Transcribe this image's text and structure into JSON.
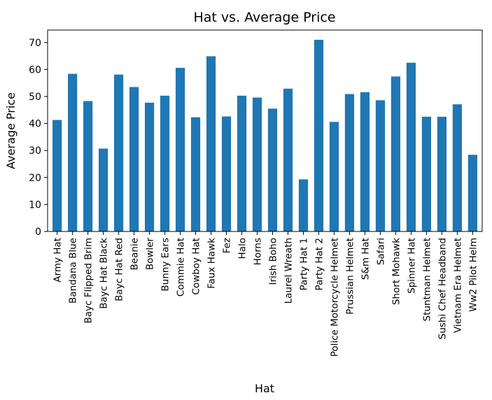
{
  "chart_data": {
    "type": "bar",
    "title": "Hat vs. Average Price",
    "xlabel": "Hat",
    "ylabel": "Average Price",
    "ylim": [
      0,
      74.6
    ],
    "yticks": [
      0,
      10,
      20,
      30,
      40,
      50,
      60,
      70
    ],
    "grid": false,
    "bar_color": "#1f77b4",
    "categories": [
      "Army Hat",
      "Bandana Blue",
      "Bayc Flipped Brim",
      "Bayc Hat Black",
      "Bayc Hat Red",
      "Beanie",
      "Bowler",
      "Bunny Ears",
      "Commie Hat",
      "Cowboy Hat",
      "Faux Hawk",
      "Fez",
      "Halo",
      "Horns",
      "Irish Boho",
      "Laurel Wreath",
      "Party Hat 1",
      "Party Hat 2",
      "Police Motorcycle Helmet",
      "Prussian Helmet",
      "S&m Hat",
      "Safari",
      "Short Mohawk",
      "Spinner Hat",
      "Stuntman Helmet",
      "Sushi Chef Headband",
      "Vietnam Era Helmet",
      "Ww2 Pilot Helm"
    ],
    "values": [
      41.3,
      58.4,
      48.3,
      30.7,
      58.1,
      53.5,
      47.7,
      50.3,
      60.6,
      42.3,
      64.9,
      42.6,
      50.3,
      49.6,
      45.5,
      52.9,
      19.3,
      71.0,
      40.6,
      50.9,
      51.6,
      48.6,
      57.4,
      62.5,
      42.5,
      42.5,
      47.1,
      28.4
    ]
  }
}
